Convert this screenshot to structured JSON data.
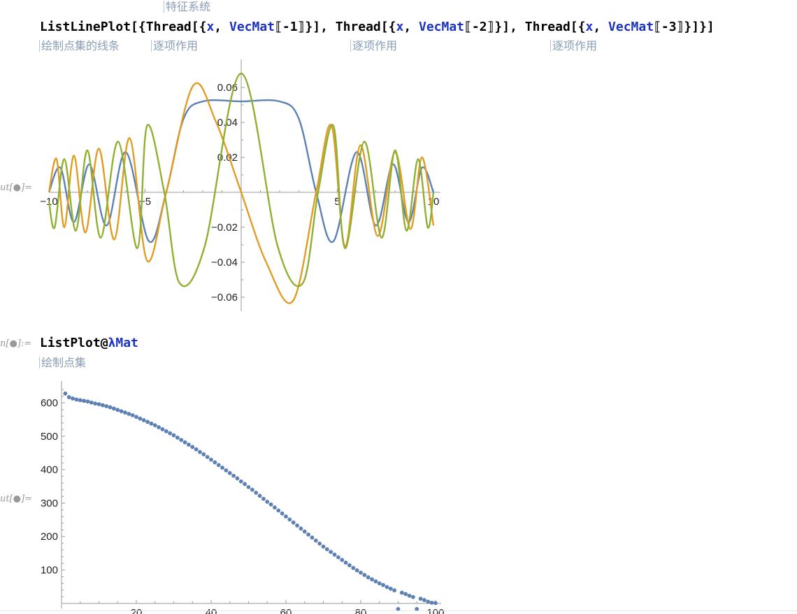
{
  "header": {
    "hint_top": "特征系统"
  },
  "cell1": {
    "code": {
      "func": "ListLinePlot",
      "open": "[{",
      "thread": "Thread",
      "brk": "[{",
      "x": "x",
      "comma": ", ",
      "vecmat": "VecMat",
      "idx1": "⟦-1⟧",
      "idx2": "⟦-2⟧",
      "idx3": "⟦-3⟧",
      "close": "}]",
      "sep": ", ",
      "end": "}]"
    },
    "hints": [
      "绘制点集的线条",
      "逐项作用",
      "逐项作用",
      "逐项作用"
    ],
    "out_prompt": "ut[●]="
  },
  "cell2": {
    "in_prompt": "n[●]:=",
    "code": {
      "func": "ListPlot@",
      "arg": "λMat"
    },
    "hint": "绘制点集",
    "out_prompt": "ut[●]="
  },
  "colors": {
    "blue": "#5e81b5",
    "orange": "#e19c24",
    "green": "#8fb032",
    "keyword": "#1b33bd",
    "hint": "#8a9db6"
  },
  "chart_data": [
    {
      "type": "line",
      "title": "",
      "xlabel": "",
      "ylabel": "",
      "xlim": [
        -10,
        10
      ],
      "ylim": [
        -0.068,
        0.072
      ],
      "xticks": [
        "−10",
        "−5",
        "5",
        "10"
      ],
      "yticks": [
        "0.06",
        "0.04",
        "0.02",
        "−0.02",
        "−0.04",
        "−0.06"
      ],
      "series": [
        {
          "color": "#5e81b5",
          "x": [
            -10,
            -9.4,
            -8.7,
            -7.9,
            -7.0,
            -6.0,
            -4.8,
            -3.9,
            -3.0,
            -2.0,
            0,
            2.0,
            3.0,
            3.9,
            4.8,
            6.0,
            7.0,
            7.9,
            8.7,
            9.4,
            10
          ],
          "y": [
            0.0,
            0.014,
            -0.017,
            0.016,
            -0.019,
            0.023,
            -0.028,
            0.0,
            0.042,
            0.052,
            0.052,
            0.052,
            0.042,
            0.0,
            -0.028,
            0.023,
            -0.019,
            0.016,
            -0.017,
            0.014,
            0.0
          ]
        },
        {
          "color": "#e19c24",
          "x": [
            -10,
            -9.6,
            -9.2,
            -8.7,
            -8.1,
            -7.4,
            -6.6,
            -5.8,
            -4.9,
            -3.9,
            -2.5,
            -1.3,
            0,
            1.3,
            2.7,
            3.9,
            4.7,
            5.4,
            6.2,
            7.1,
            8.0,
            8.8,
            9.4,
            10
          ],
          "y": [
            0.0,
            0.019,
            -0.02,
            0.021,
            -0.023,
            0.025,
            -0.027,
            0.031,
            -0.039,
            0.0,
            0.061,
            0.04,
            0.0,
            -0.04,
            -0.062,
            0.0,
            0.038,
            -0.031,
            0.027,
            -0.025,
            0.023,
            -0.021,
            0.02,
            -0.019
          ]
        },
        {
          "color": "#8fb032",
          "x": [
            -10,
            -9.7,
            -9.2,
            -8.6,
            -8.0,
            -7.3,
            -6.4,
            -5.4,
            -4.9,
            -4.0,
            -3.2,
            -1.9,
            0,
            1.9,
            3.2,
            4.0,
            4.8,
            5.4,
            6.4,
            7.3,
            8.0,
            8.6,
            9.2,
            9.7,
            10
          ],
          "y": [
            -0.005,
            -0.02,
            0.019,
            -0.022,
            0.024,
            -0.026,
            0.029,
            -0.032,
            0.038,
            0.0,
            -0.052,
            -0.031,
            0.068,
            -0.031,
            -0.052,
            0.0,
            0.038,
            -0.032,
            0.029,
            -0.026,
            0.024,
            -0.022,
            0.019,
            -0.02,
            0.0
          ]
        }
      ]
    },
    {
      "type": "scatter",
      "title": "",
      "xlabel": "",
      "ylabel": "",
      "xlim": [
        0,
        101.5
      ],
      "ylim": [
        -15,
        665
      ],
      "xticks": [
        "20",
        "40",
        "60",
        "80",
        "100"
      ],
      "yticks": [
        "100",
        "200",
        "300",
        "400",
        "500",
        "600"
      ],
      "color": "#5e81b5",
      "x": [
        1,
        2,
        3,
        4,
        5,
        6,
        7,
        8,
        9,
        10,
        11,
        12,
        13,
        14,
        15,
        16,
        17,
        18,
        19,
        20,
        21,
        22,
        23,
        24,
        25,
        26,
        27,
        28,
        29,
        30,
        31,
        32,
        33,
        34,
        35,
        36,
        37,
        38,
        39,
        40,
        41,
        42,
        43,
        44,
        45,
        46,
        47,
        48,
        49,
        50,
        51,
        52,
        53,
        54,
        55,
        56,
        57,
        58,
        59,
        60,
        61,
        62,
        63,
        64,
        65,
        66,
        67,
        68,
        69,
        70,
        71,
        72,
        73,
        74,
        75,
        76,
        77,
        78,
        79,
        80,
        81,
        82,
        83,
        84,
        85,
        86,
        87,
        88,
        89,
        90,
        91,
        92,
        93,
        94,
        95,
        96,
        97,
        98,
        99,
        100
      ],
      "y": [
        628,
        617,
        613,
        610,
        608,
        606,
        604,
        601,
        598,
        596,
        593,
        590,
        587,
        583,
        579,
        575,
        571,
        567,
        563,
        558,
        553,
        548,
        543,
        538,
        533,
        527,
        521,
        515,
        509,
        503,
        496,
        489,
        482,
        475,
        468,
        461,
        453,
        446,
        438,
        430,
        422,
        414,
        406,
        398,
        390,
        382,
        374,
        365,
        357,
        348,
        340,
        331,
        322,
        313,
        304,
        296,
        287,
        278,
        269,
        260,
        251,
        242,
        233,
        224,
        215,
        206,
        197,
        188,
        179,
        170,
        162,
        154,
        146,
        138,
        130,
        122,
        114,
        106,
        99,
        92,
        85,
        78,
        72,
        66,
        60,
        55,
        49,
        44,
        39,
        -17,
        32,
        28,
        23,
        19,
        -17,
        14,
        10,
        5,
        2,
        1
      ]
    }
  ]
}
